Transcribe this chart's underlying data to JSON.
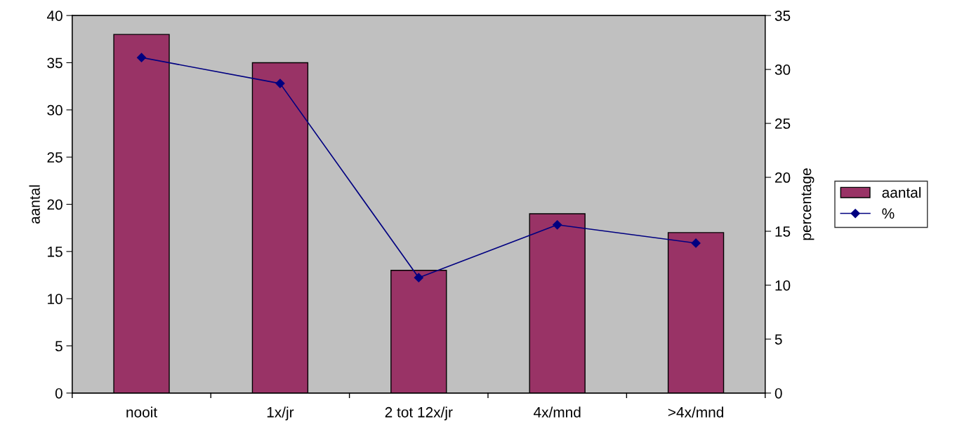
{
  "chart_data": {
    "type": "bar",
    "categories": [
      "nooit",
      "1x/jr",
      "2 tot 12x/jr",
      "4x/mnd",
      ">4x/mnd"
    ],
    "series": [
      {
        "name": "aantal",
        "color": "#993366",
        "values": [
          38,
          35,
          13,
          19,
          17
        ]
      },
      {
        "name": "%",
        "type": "line",
        "axis": "y2",
        "color": "#000080",
        "values": [
          31.1,
          28.7,
          10.7,
          15.6,
          13.9
        ]
      }
    ],
    "ylabel": "aantal",
    "y2label": "percentage",
    "ylim": [
      0,
      40
    ],
    "yticks": [
      0,
      5,
      10,
      15,
      20,
      25,
      30,
      35,
      40
    ],
    "y2lim": [
      0,
      35
    ],
    "y2ticks": [
      0,
      5,
      10,
      15,
      20,
      25,
      30,
      35
    ],
    "marker": "diamond",
    "line_style": "solid",
    "grid": false,
    "legend": "right"
  }
}
